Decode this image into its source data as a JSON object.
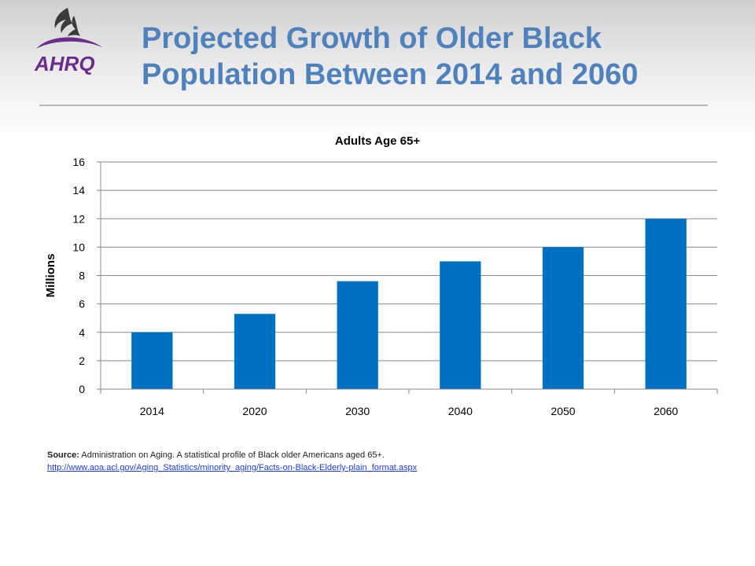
{
  "slide": {
    "title_line1": "Projected Growth of Older Black",
    "title_line2": "Population Between 2014 and 2060",
    "logo_text": "AHRQ"
  },
  "chart_data": {
    "type": "bar",
    "title": "Adults Age 65+",
    "ylabel": "Millions",
    "xlabel": "",
    "categories": [
      "2014",
      "2020",
      "2030",
      "2040",
      "2050",
      "2060"
    ],
    "values": [
      4.0,
      5.3,
      7.6,
      9.0,
      10.0,
      12.0
    ],
    "ylim": [
      0,
      16
    ],
    "yticks": [
      0,
      2,
      4,
      6,
      8,
      10,
      12,
      14,
      16
    ],
    "grid": true,
    "legend": "none",
    "bar_color": "#0070c0"
  },
  "source": {
    "label": "Source:",
    "text": "Administration on Aging. A statistical profile of Black older Americans aged 65+.",
    "link": "http://www.aoa.acl.gov/Aging_Statistics/minority_aging/Facts-on-Black-Elderly-plain_format.aspx"
  },
  "colors": {
    "title": "#4f81bd",
    "logo_purple": "#6b2d8b",
    "bar": "#0070c0"
  }
}
